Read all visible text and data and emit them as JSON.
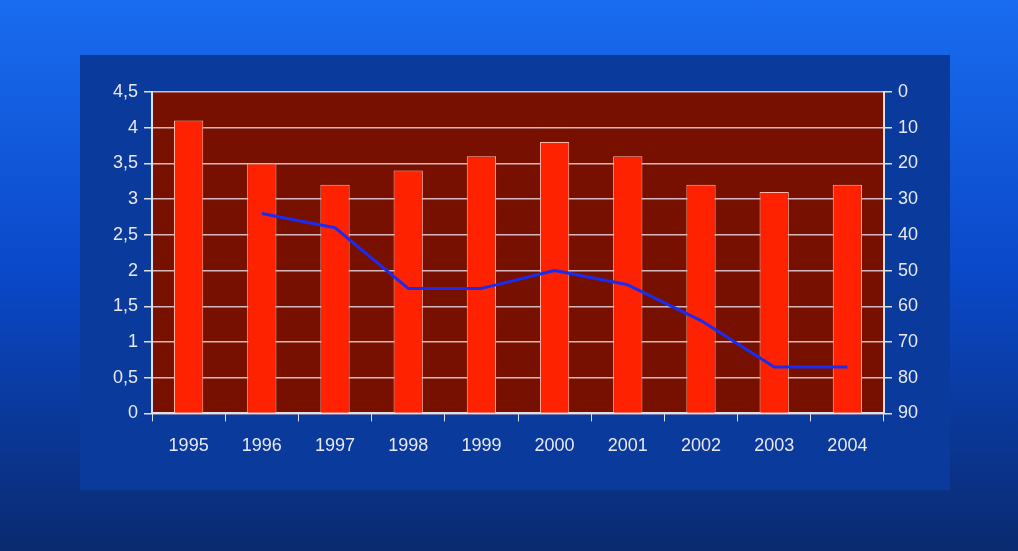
{
  "chart_data": {
    "type": "bar",
    "categories": [
      "1995",
      "1996",
      "1997",
      "1998",
      "1999",
      "2000",
      "2001",
      "2002",
      "2003",
      "2004"
    ],
    "series": [
      {
        "color": "#ff2200",
        "values": [
          4.1,
          3.5,
          3.2,
          3.4,
          3.6,
          3.8,
          3.6,
          3.2,
          3.1,
          3.2
        ]
      },
      {
        "type": "line",
        "axis": "y2",
        "color": "#1a2cf0",
        "values": [
          null,
          34,
          38,
          55,
          55,
          50,
          54,
          64,
          77,
          77
        ]
      }
    ],
    "ylim": [
      0,
      4.5
    ],
    "yticks": [
      0,
      {
        "value": 0.5,
        "label": "0,5"
      },
      1,
      {
        "value": 1.5,
        "label": "1,5"
      },
      2,
      {
        "value": 2.5,
        "label": "2,5"
      },
      3,
      {
        "value": 3.5,
        "label": "3,5"
      },
      4,
      {
        "value": 4.5,
        "label": "4,5"
      }
    ],
    "y2lim": [
      90,
      0
    ],
    "y2ticks": [
      0,
      10,
      20,
      30,
      40,
      50,
      60,
      70,
      80,
      90
    ],
    "grid": "y",
    "legend": false,
    "marker": "none",
    "line_style": "solid"
  }
}
